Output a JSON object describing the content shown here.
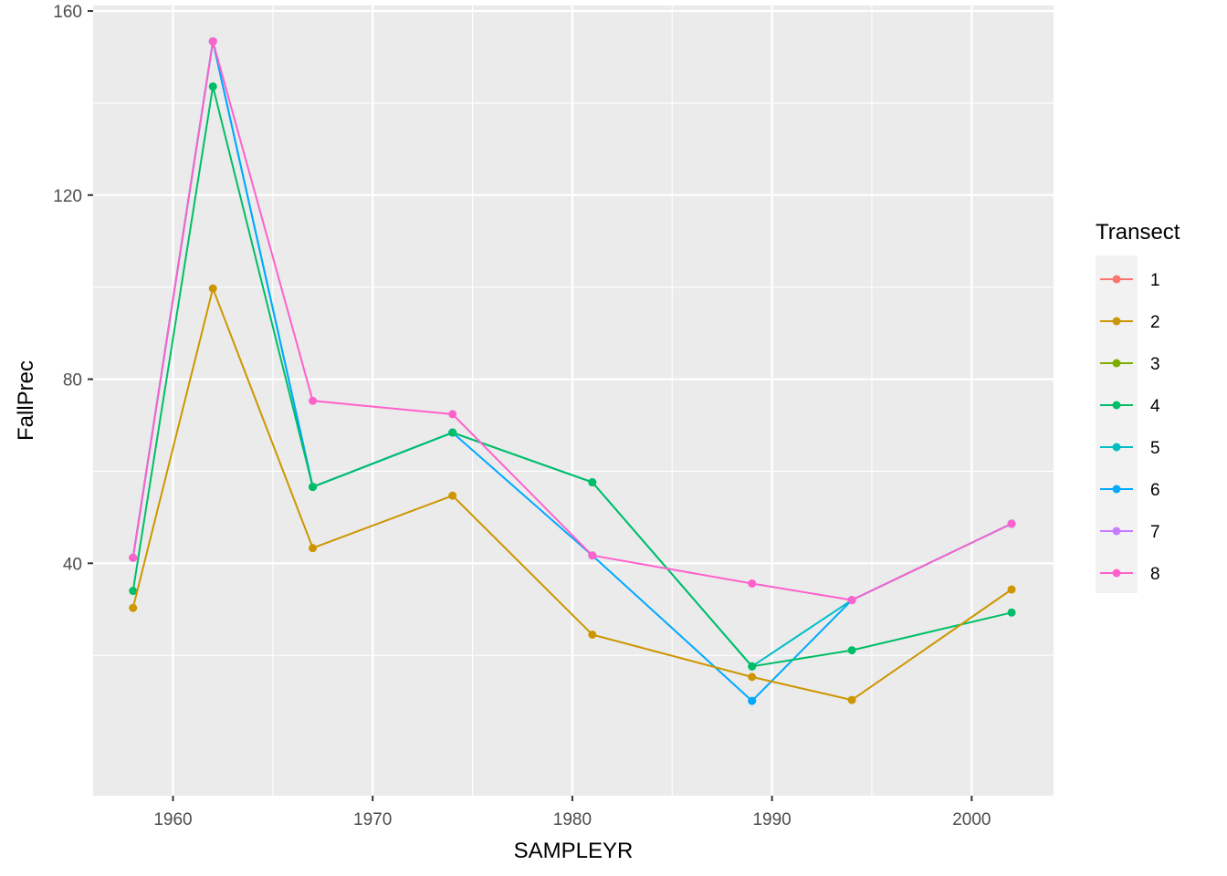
{
  "chart_data": {
    "type": "line",
    "xlabel": "SAMPLEYR",
    "ylabel": "FallPrec",
    "xlim": [
      1956,
      2004.1
    ],
    "ylim": [
      -10.5,
      161.2
    ],
    "x_ticks": [
      1960,
      1970,
      1980,
      1990,
      2000
    ],
    "x_tick_labels": [
      "1960",
      "1970",
      "1980",
      "1990",
      "2000"
    ],
    "x_minor": [
      1965,
      1975,
      1985,
      1995
    ],
    "y_ticks": [
      40,
      80,
      120,
      160
    ],
    "y_tick_labels": [
      "40",
      "80",
      "120",
      "160"
    ],
    "y_minor": [
      20,
      60,
      100,
      140
    ],
    "grid": true,
    "legend": {
      "title": "Transect",
      "position": "right",
      "entries": [
        {
          "label": "1",
          "color": "#F8766D"
        },
        {
          "label": "2",
          "color": "#CD9600"
        },
        {
          "label": "3",
          "color": "#7CAE00"
        },
        {
          "label": "4",
          "color": "#00BE67"
        },
        {
          "label": "5",
          "color": "#00BFC4"
        },
        {
          "label": "6",
          "color": "#00A9FF"
        },
        {
          "label": "7",
          "color": "#C77CFF"
        },
        {
          "label": "8",
          "color": "#FF61CC"
        }
      ]
    },
    "series": [
      {
        "name": "5",
        "color": "#00BFC4",
        "x": [
          1958,
          1962,
          1967,
          1974,
          1981,
          1989,
          1994,
          2002
        ],
        "y": [
          41.2,
          153.4,
          56.6,
          68.4,
          57.6,
          17.6,
          32.0,
          48.6
        ]
      },
      {
        "name": "6",
        "color": "#00A9FF",
        "x": [
          1958,
          1962,
          1967,
          1974,
          1981,
          1989,
          1994,
          2002
        ],
        "y": [
          41.2,
          153.4,
          56.6,
          68.4,
          41.7,
          10.1,
          32.0,
          48.6
        ]
      },
      {
        "name": "4",
        "color": "#00BE67",
        "x": [
          1958,
          1962,
          1967,
          1974,
          1981,
          1989,
          1994,
          2002
        ],
        "y": [
          34.0,
          143.6,
          56.6,
          68.4,
          57.6,
          17.6,
          21.1,
          29.3
        ]
      },
      {
        "name": "8",
        "color": "#FF61CC",
        "x": [
          1958,
          1962,
          1967,
          1974,
          1981,
          1989,
          1994,
          2002
        ],
        "y": [
          41.2,
          153.4,
          75.3,
          72.4,
          41.7,
          35.6,
          32.0,
          48.6
        ]
      },
      {
        "name": "2",
        "color": "#CD9600",
        "x": [
          1958,
          1962,
          1967,
          1974,
          1981,
          1989,
          1994,
          2002
        ],
        "y": [
          30.3,
          99.7,
          43.3,
          54.7,
          24.5,
          15.3,
          10.3,
          34.3
        ]
      }
    ]
  }
}
